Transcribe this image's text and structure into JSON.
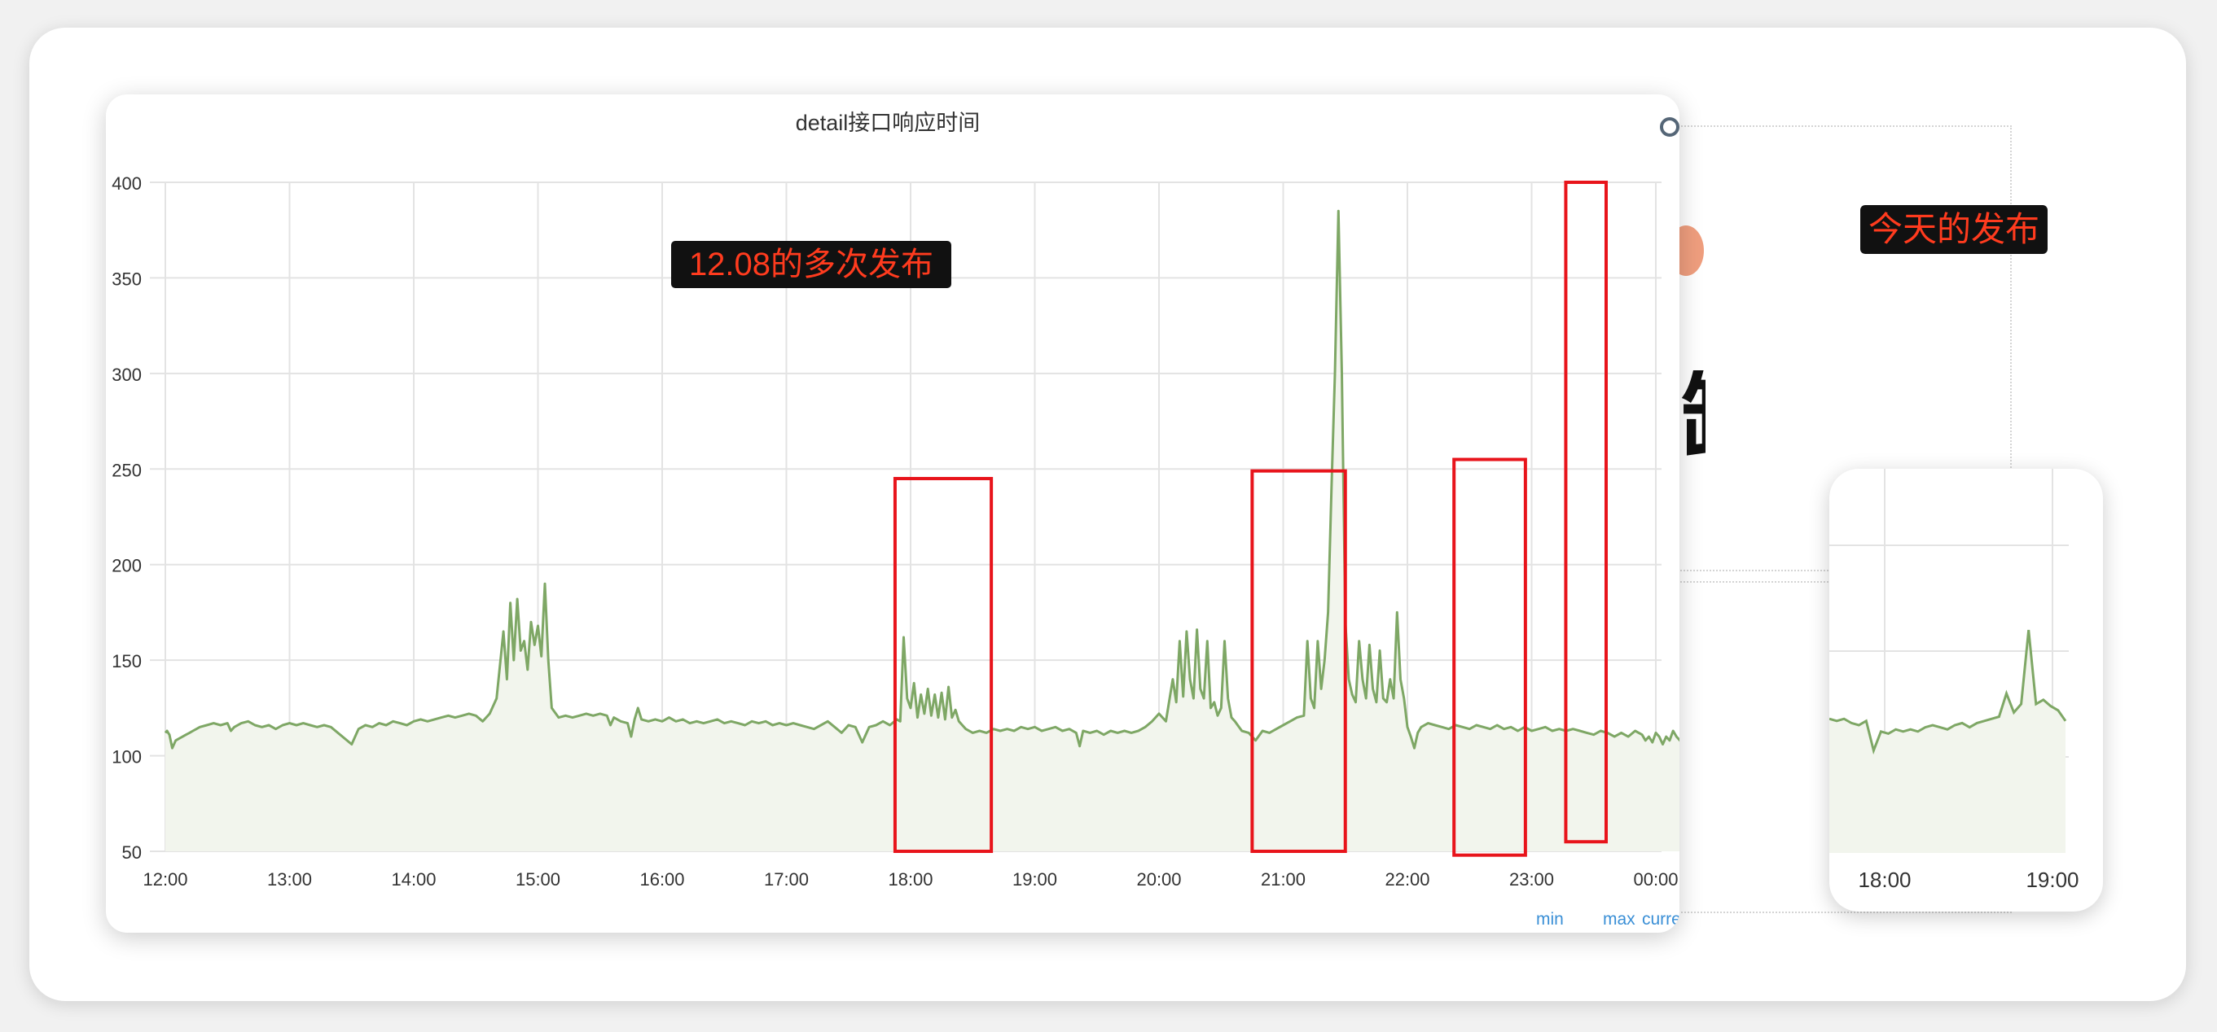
{
  "chart_data": {
    "type": "area",
    "title": "detail接口响应时间",
    "x_ticks": [
      "12:00",
      "13:00",
      "14:00",
      "15:00",
      "16:00",
      "17:00",
      "18:00",
      "19:00",
      "20:00",
      "21:00",
      "22:00",
      "23:00",
      "00:00"
    ],
    "y_ticks": [
      50,
      100,
      150,
      200,
      250,
      300,
      350,
      400
    ],
    "ylim": [
      50,
      400
    ],
    "grid": true,
    "line_color": "#7ea765",
    "fill_color": "#f2f5ed",
    "series": [
      {
        "values": [
          [
            0,
            112
          ],
          [
            0.5,
            113
          ],
          [
            0.83,
            112
          ],
          [
            1.17,
            111
          ],
          [
            2,
            104
          ],
          [
            3,
            108
          ],
          [
            4,
            109
          ],
          [
            5,
            110
          ],
          [
            6,
            111
          ],
          [
            7,
            112
          ],
          [
            8,
            113
          ],
          [
            9,
            114
          ],
          [
            10,
            115
          ],
          [
            12,
            116
          ],
          [
            14,
            117
          ],
          [
            16,
            116
          ],
          [
            18,
            117
          ],
          [
            19,
            113
          ],
          [
            20,
            115
          ],
          [
            22,
            117
          ],
          [
            24,
            118
          ],
          [
            26,
            116
          ],
          [
            28,
            115
          ],
          [
            30,
            116
          ],
          [
            32,
            114
          ],
          [
            34,
            116
          ],
          [
            36,
            117
          ],
          [
            38,
            116
          ],
          [
            40,
            117
          ],
          [
            42,
            116
          ],
          [
            44,
            115
          ],
          [
            46,
            116
          ],
          [
            48,
            115
          ],
          [
            54,
            106
          ],
          [
            56,
            114
          ],
          [
            58,
            116
          ],
          [
            60,
            115
          ],
          [
            62,
            117
          ],
          [
            64,
            116
          ],
          [
            66,
            118
          ],
          [
            68,
            117
          ],
          [
            70,
            116
          ],
          [
            72,
            118
          ],
          [
            74,
            119
          ],
          [
            76,
            118
          ],
          [
            78,
            119
          ],
          [
            80,
            120
          ],
          [
            82,
            121
          ],
          [
            84,
            120
          ],
          [
            86,
            121
          ],
          [
            88,
            122
          ],
          [
            90,
            121
          ],
          [
            92,
            118
          ],
          [
            94,
            122
          ],
          [
            96,
            130
          ],
          [
            98,
            165
          ],
          [
            99,
            140
          ],
          [
            100,
            180
          ],
          [
            101,
            150
          ],
          [
            102,
            182
          ],
          [
            103,
            155
          ],
          [
            104,
            160
          ],
          [
            105,
            145
          ],
          [
            106,
            170
          ],
          [
            107,
            158
          ],
          [
            108,
            168
          ],
          [
            109,
            152
          ],
          [
            110,
            190
          ],
          [
            111,
            150
          ],
          [
            112,
            125
          ],
          [
            114,
            120
          ],
          [
            116,
            121
          ],
          [
            118,
            120
          ],
          [
            120,
            121
          ],
          [
            122,
            122
          ],
          [
            124,
            121
          ],
          [
            126,
            122
          ],
          [
            128,
            121
          ],
          [
            129,
            116
          ],
          [
            130,
            120
          ],
          [
            132,
            118
          ],
          [
            134,
            117
          ],
          [
            135,
            110
          ],
          [
            136,
            119
          ],
          [
            137,
            125
          ],
          [
            138,
            119
          ],
          [
            140,
            118
          ],
          [
            142,
            119
          ],
          [
            144,
            118
          ],
          [
            146,
            120
          ],
          [
            148,
            118
          ],
          [
            150,
            119
          ],
          [
            152,
            117
          ],
          [
            154,
            118
          ],
          [
            156,
            117
          ],
          [
            158,
            118
          ],
          [
            160,
            119
          ],
          [
            162,
            117
          ],
          [
            164,
            118
          ],
          [
            166,
            117
          ],
          [
            168,
            116
          ],
          [
            170,
            118
          ],
          [
            172,
            117
          ],
          [
            174,
            118
          ],
          [
            176,
            116
          ],
          [
            178,
            117
          ],
          [
            180,
            116
          ],
          [
            182,
            117
          ],
          [
            184,
            116
          ],
          [
            186,
            115
          ],
          [
            188,
            114
          ],
          [
            190,
            116
          ],
          [
            192,
            118
          ],
          [
            194,
            115
          ],
          [
            196,
            112
          ],
          [
            198,
            116
          ],
          [
            200,
            115
          ],
          [
            202,
            107
          ],
          [
            204,
            115
          ],
          [
            206,
            116
          ],
          [
            208,
            118
          ],
          [
            210,
            116
          ],
          [
            212,
            119
          ],
          [
            213,
            118
          ],
          [
            214,
            162
          ],
          [
            215,
            130
          ],
          [
            216,
            125
          ],
          [
            217,
            138
          ],
          [
            218,
            120
          ],
          [
            219,
            132
          ],
          [
            220,
            122
          ],
          [
            221,
            135
          ],
          [
            222,
            121
          ],
          [
            223,
            132
          ],
          [
            224,
            120
          ],
          [
            225,
            133
          ],
          [
            226,
            119
          ],
          [
            227,
            136
          ],
          [
            228,
            120
          ],
          [
            229,
            124
          ],
          [
            230,
            118
          ],
          [
            232,
            114
          ],
          [
            234,
            112
          ],
          [
            236,
            113
          ],
          [
            238,
            112
          ],
          [
            240,
            114
          ],
          [
            242,
            113
          ],
          [
            244,
            114
          ],
          [
            246,
            113
          ],
          [
            248,
            115
          ],
          [
            250,
            114
          ],
          [
            252,
            115
          ],
          [
            254,
            113
          ],
          [
            256,
            114
          ],
          [
            258,
            115
          ],
          [
            260,
            113
          ],
          [
            262,
            114
          ],
          [
            264,
            112
          ],
          [
            265,
            105
          ],
          [
            266,
            113
          ],
          [
            268,
            112
          ],
          [
            270,
            113
          ],
          [
            272,
            111
          ],
          [
            274,
            113
          ],
          [
            276,
            112
          ],
          [
            278,
            113
          ],
          [
            280,
            112
          ],
          [
            282,
            113
          ],
          [
            284,
            115
          ],
          [
            286,
            118
          ],
          [
            288,
            122
          ],
          [
            290,
            118
          ],
          [
            292,
            140
          ],
          [
            293,
            128
          ],
          [
            294,
            160
          ],
          [
            295,
            131
          ],
          [
            296,
            165
          ],
          [
            297,
            140
          ],
          [
            298,
            130
          ],
          [
            299,
            166
          ],
          [
            300,
            135
          ],
          [
            301,
            130
          ],
          [
            302,
            160
          ],
          [
            303,
            125
          ],
          [
            304,
            128
          ],
          [
            305,
            121
          ],
          [
            306,
            125
          ],
          [
            307,
            160
          ],
          [
            308,
            130
          ],
          [
            309,
            120
          ],
          [
            310,
            118
          ],
          [
            312,
            113
          ],
          [
            314,
            112
          ],
          [
            316,
            108
          ],
          [
            318,
            113
          ],
          [
            320,
            112
          ],
          [
            322,
            114
          ],
          [
            324,
            116
          ],
          [
            326,
            118
          ],
          [
            328,
            120
          ],
          [
            330,
            121
          ],
          [
            331,
            160
          ],
          [
            332,
            130
          ],
          [
            333,
            125
          ],
          [
            334,
            160
          ],
          [
            335,
            135
          ],
          [
            336,
            150
          ],
          [
            337,
            175
          ],
          [
            338,
            240
          ],
          [
            339,
            300
          ],
          [
            340,
            385
          ],
          [
            341,
            300
          ],
          [
            342,
            170
          ],
          [
            343,
            140
          ],
          [
            344,
            132
          ],
          [
            345,
            128
          ],
          [
            346,
            160
          ],
          [
            347,
            140
          ],
          [
            348,
            130
          ],
          [
            349,
            158
          ],
          [
            350,
            135
          ],
          [
            351,
            128
          ],
          [
            352,
            155
          ],
          [
            353,
            130
          ],
          [
            354,
            128
          ],
          [
            355,
            140
          ],
          [
            356,
            130
          ],
          [
            357,
            175
          ],
          [
            358,
            140
          ],
          [
            359,
            130
          ],
          [
            360,
            115
          ],
          [
            361,
            110
          ],
          [
            362,
            104
          ],
          [
            363,
            112
          ],
          [
            364,
            115
          ],
          [
            366,
            117
          ],
          [
            368,
            116
          ],
          [
            370,
            115
          ],
          [
            372,
            114
          ],
          [
            374,
            116
          ],
          [
            376,
            115
          ],
          [
            378,
            114
          ],
          [
            380,
            116
          ],
          [
            382,
            115
          ],
          [
            384,
            114
          ],
          [
            386,
            116
          ],
          [
            388,
            114
          ],
          [
            390,
            115
          ],
          [
            392,
            113
          ],
          [
            394,
            115
          ],
          [
            396,
            113
          ],
          [
            398,
            114
          ],
          [
            400,
            115
          ],
          [
            402,
            113
          ],
          [
            404,
            114
          ],
          [
            406,
            113
          ],
          [
            408,
            114
          ],
          [
            410,
            113
          ],
          [
            412,
            112
          ],
          [
            414,
            111
          ],
          [
            416,
            113
          ],
          [
            418,
            112
          ],
          [
            420,
            110
          ],
          [
            422,
            112
          ],
          [
            424,
            110
          ],
          [
            426,
            113
          ],
          [
            428,
            111
          ],
          [
            429,
            108
          ],
          [
            430,
            110
          ],
          [
            431,
            107
          ],
          [
            432,
            112
          ],
          [
            433,
            110
          ],
          [
            434,
            106
          ],
          [
            435,
            110
          ],
          [
            436,
            108
          ],
          [
            437,
            113
          ],
          [
            438,
            110
          ],
          [
            439,
            108
          ],
          [
            440,
            105
          ],
          [
            441,
            104
          ],
          [
            442,
            108
          ],
          [
            443,
            100
          ],
          [
            444,
            94
          ],
          [
            445,
            96
          ],
          [
            446,
            103
          ],
          [
            447,
            104
          ]
        ]
      }
    ],
    "annotations": [
      {
        "type": "box",
        "x": [
          23.75,
          25.3
        ],
        "y": [
          245,
          50
        ]
      },
      {
        "type": "box",
        "x": [
          29.5,
          31.0
        ],
        "y": [
          249,
          50
        ]
      },
      {
        "type": "box",
        "x": [
          32.75,
          33.9
        ],
        "y": [
          255,
          48
        ]
      },
      {
        "type": "box",
        "x": [
          34.55,
          35.2
        ],
        "y": [
          400,
          55
        ]
      }
    ],
    "legend": [
      "min",
      "max",
      "current"
    ],
    "callout": "12.08的多次发布"
  },
  "thumb_chart": {
    "x_ticks": [
      "18:00",
      "19:00"
    ],
    "series": [
      {
        "values": [
          [
            0,
            118
          ],
          [
            1,
            117
          ],
          [
            2,
            118
          ],
          [
            3,
            116
          ],
          [
            4,
            115
          ],
          [
            5,
            117
          ],
          [
            6,
            103
          ],
          [
            7,
            112
          ],
          [
            8,
            111
          ],
          [
            9,
            113
          ],
          [
            10,
            112
          ],
          [
            11,
            113
          ],
          [
            12,
            112
          ],
          [
            13,
            114
          ],
          [
            14,
            115
          ],
          [
            15,
            114
          ],
          [
            16,
            113
          ],
          [
            17,
            115
          ],
          [
            18,
            116
          ],
          [
            19,
            114
          ],
          [
            20,
            116
          ],
          [
            21,
            117
          ],
          [
            22,
            118
          ],
          [
            23,
            119
          ],
          [
            24,
            130
          ],
          [
            25,
            121
          ],
          [
            26,
            125
          ],
          [
            27,
            160
          ],
          [
            28,
            125
          ],
          [
            29,
            127
          ],
          [
            30,
            124
          ],
          [
            31,
            122
          ],
          [
            32,
            117
          ]
        ]
      }
    ]
  },
  "backdrop": {
    "today_label": "今天的发布",
    "partial_glyph": "缸"
  }
}
